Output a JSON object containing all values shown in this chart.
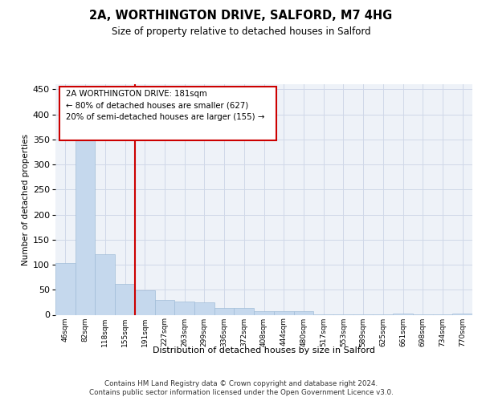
{
  "title": "2A, WORTHINGTON DRIVE, SALFORD, M7 4HG",
  "subtitle": "Size of property relative to detached houses in Salford",
  "xlabel": "Distribution of detached houses by size in Salford",
  "ylabel": "Number of detached properties",
  "categories": [
    "46sqm",
    "82sqm",
    "118sqm",
    "155sqm",
    "191sqm",
    "227sqm",
    "263sqm",
    "299sqm",
    "336sqm",
    "372sqm",
    "408sqm",
    "444sqm",
    "480sqm",
    "517sqm",
    "553sqm",
    "589sqm",
    "625sqm",
    "661sqm",
    "698sqm",
    "734sqm",
    "770sqm"
  ],
  "values": [
    104,
    356,
    121,
    62,
    49,
    30,
    26,
    25,
    13,
    14,
    7,
    7,
    8,
    1,
    1,
    1,
    1,
    3,
    1,
    1,
    3
  ],
  "bar_color": "#c5d8ed",
  "bar_edge_color": "#a0bcd8",
  "grid_color": "#d0d8e8",
  "bg_color": "#eef2f8",
  "vline_color": "#cc0000",
  "annotation_box_color": "#cc0000",
  "footer_line1": "Contains HM Land Registry data © Crown copyright and database right 2024.",
  "footer_line2": "Contains public sector information licensed under the Open Government Licence v3.0.",
  "ylim": [
    0,
    460
  ],
  "yticks": [
    0,
    50,
    100,
    150,
    200,
    250,
    300,
    350,
    400,
    450
  ],
  "ann_line1": "2A WORTHINGTON DRIVE: 181sqm",
  "ann_line2": "← 80% of detached houses are smaller (627)",
  "ann_line3": "20% of semi-detached houses are larger (155) →"
}
